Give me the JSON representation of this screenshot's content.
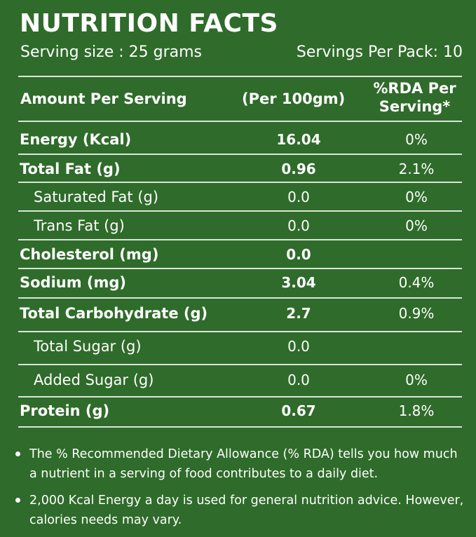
{
  "title": "NUTRITION FACTS",
  "serving_size": "Serving size : 25 grams",
  "servings_per_pack": "Servings Per Pack: 10",
  "headers": {
    "amount": "Amount Per Serving",
    "per100": "(Per 100gm)",
    "rda_line1": "%RDA Per",
    "rda_line2": "Serving*"
  },
  "rows": [
    {
      "name": "Energy (Kcal)",
      "value": "16.04",
      "rda": "0%",
      "bold": true,
      "indent": false
    },
    {
      "name": "Total Fat (g)",
      "value": "0.96",
      "rda": "2.1%",
      "bold": true,
      "indent": false
    },
    {
      "name": "Saturated Fat (g)",
      "value": "0.0",
      "rda": "0%",
      "bold": false,
      "indent": true
    },
    {
      "name": "Trans Fat (g)",
      "value": "0.0",
      "rda": "0%",
      "bold": false,
      "indent": true
    },
    {
      "name": "Cholesterol (mg)",
      "value": "0.0",
      "rda": "",
      "bold": true,
      "indent": false
    },
    {
      "name": "Sodium  (mg)",
      "value": "3.04",
      "rda": "0.4%",
      "bold": true,
      "indent": false
    },
    {
      "name": "Total Carbohydrate (g)",
      "value": "2.7",
      "rda": "0.9%",
      "bold": true,
      "indent": false
    },
    {
      "name": "Total Sugar (g)",
      "value": "0.0",
      "rda": "",
      "bold": false,
      "indent": true
    },
    {
      "name": "Added Sugar (g)",
      "value": "0.0",
      "rda": "0%",
      "bold": false,
      "indent": true
    },
    {
      "name": "Protein (g)",
      "value": "0.67",
      "rda": "1.8%",
      "bold": true,
      "indent": false
    }
  ],
  "notes": [
    "The % Recommended Dietary Allowance (% RDA) tells you how much a nutrient in a serving of food contributes to a daily diet.",
    "2,000 Kcal Energy a day is used for general nutrition advice. However, calories needs may vary."
  ],
  "colors": {
    "background": "#2f6b2a",
    "text": "#ffffff",
    "rule": "#d9e6d7"
  }
}
